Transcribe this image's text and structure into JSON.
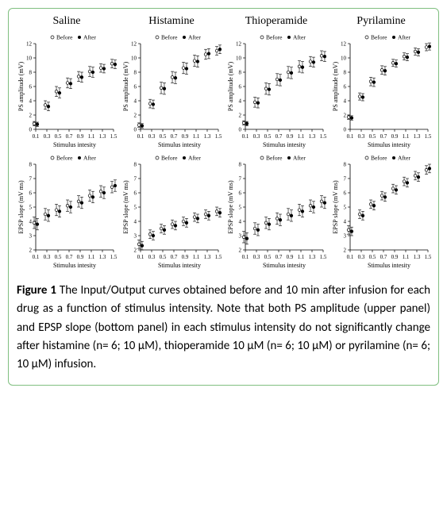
{
  "columns": [
    "Saline",
    "Histamine",
    "Thioperamide",
    "Pyrilamine"
  ],
  "legend": {
    "before": "Before",
    "after": "After"
  },
  "x_ticks": [
    0.1,
    0.3,
    0.5,
    0.7,
    0.9,
    1.1,
    1.3,
    1.5
  ],
  "x_label": "Stimulus intesity",
  "ps": {
    "y_label": "PS amplitude (mV)",
    "ylim": [
      0,
      12
    ],
    "y_ticks": [
      0,
      2,
      4,
      6,
      8,
      10,
      12
    ],
    "series": {
      "saline": {
        "before": [
          0.8,
          3.4,
          5.3,
          6.5,
          7.4,
          8.1,
          8.6,
          9.2
        ],
        "after": [
          0.7,
          3.2,
          5.1,
          6.4,
          7.3,
          8.0,
          8.5,
          9.1
        ],
        "err": [
          0.3,
          0.6,
          0.7,
          0.7,
          0.7,
          0.7,
          0.6,
          0.6
        ]
      },
      "histamine": {
        "before": [
          0.6,
          3.6,
          5.8,
          7.3,
          8.6,
          9.6,
          10.5,
          11.0
        ],
        "after": [
          0.5,
          3.5,
          5.7,
          7.2,
          8.5,
          9.5,
          10.6,
          11.2
        ],
        "err": [
          0.3,
          0.6,
          0.8,
          0.8,
          0.8,
          0.8,
          0.7,
          0.6
        ]
      },
      "thioperamide": {
        "before": [
          0.9,
          3.8,
          5.7,
          7.0,
          8.0,
          8.8,
          9.5,
          10.3
        ],
        "after": [
          0.8,
          3.7,
          5.6,
          6.9,
          7.9,
          8.7,
          9.4,
          10.2
        ],
        "err": [
          0.3,
          0.7,
          0.8,
          0.8,
          0.8,
          0.8,
          0.7,
          0.7
        ]
      },
      "pyrilamine": {
        "before": [
          1.7,
          4.6,
          6.7,
          8.3,
          9.3,
          10.2,
          10.9,
          11.5
        ],
        "after": [
          1.6,
          4.5,
          6.6,
          8.2,
          9.2,
          10.1,
          10.8,
          11.6
        ],
        "err": [
          0.3,
          0.5,
          0.6,
          0.6,
          0.5,
          0.5,
          0.5,
          0.5
        ]
      }
    }
  },
  "epsp": {
    "y_label": "EPSP slope (mV ms)",
    "ylim": [
      2,
      8
    ],
    "y_ticks": [
      2,
      3,
      4,
      5,
      6,
      7,
      8
    ],
    "series": {
      "saline": {
        "before": [
          3.9,
          4.5,
          4.8,
          5.1,
          5.4,
          5.8,
          6.1,
          6.4
        ],
        "after": [
          3.8,
          4.4,
          4.7,
          5.0,
          5.3,
          5.7,
          6.0,
          6.5
        ],
        "err": [
          0.4,
          0.4,
          0.4,
          0.4,
          0.4,
          0.4,
          0.4,
          0.4
        ]
      },
      "histamine": {
        "before": [
          2.4,
          3.1,
          3.5,
          3.8,
          4.0,
          4.3,
          4.5,
          4.7
        ],
        "after": [
          2.3,
          3.0,
          3.4,
          3.7,
          3.9,
          4.2,
          4.4,
          4.6
        ],
        "err": [
          0.3,
          0.3,
          0.3,
          0.3,
          0.3,
          0.3,
          0.3,
          0.3
        ]
      },
      "thioperamide": {
        "before": [
          2.9,
          3.5,
          3.9,
          4.2,
          4.5,
          4.8,
          5.1,
          5.4
        ],
        "after": [
          2.8,
          3.4,
          3.8,
          4.1,
          4.4,
          4.7,
          5.0,
          5.3
        ],
        "err": [
          0.4,
          0.4,
          0.4,
          0.4,
          0.4,
          0.4,
          0.4,
          0.4
        ]
      },
      "pyrilamine": {
        "before": [
          3.4,
          4.5,
          5.2,
          5.8,
          6.3,
          6.8,
          7.2,
          7.6
        ],
        "after": [
          3.3,
          4.4,
          5.1,
          5.7,
          6.2,
          6.7,
          7.1,
          7.7
        ],
        "err": [
          0.3,
          0.3,
          0.3,
          0.3,
          0.3,
          0.3,
          0.3,
          0.3
        ]
      }
    }
  },
  "style": {
    "axis_color": "#000000",
    "tick_fontsize": 7,
    "label_fontsize": 8,
    "title_fontsize": 14,
    "marker_radius": 1.8,
    "err_cap": 2,
    "before_fill": "#ffffff",
    "after_fill": "#000000",
    "stroke": "#000000",
    "background": "#ffffff"
  },
  "caption_label": "Figure 1",
  "caption_text": " The Input/Output curves obtained before and 10 min after infusion for each drug as a function of stimulus intensity. Note that both PS amplitude (upper panel) and EPSP slope (bottom panel) in each stimulus intensity do not significantly change after histamine (n= 6; 10 µM), thioperamide 10 µM (n= 6; 10 µM) or pyrilamine (n= 6; 10 µM) infusion."
}
